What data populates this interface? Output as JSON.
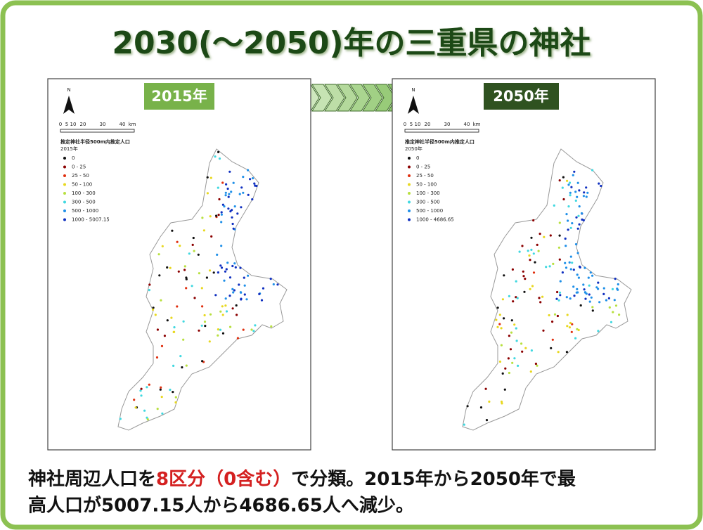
{
  "title": "2030(～2050)年の三重県の神社",
  "banner": {
    "left": "2015年",
    "right": "2050年"
  },
  "maps": [
    {
      "north": "N",
      "scale_labels": [
        "0",
        "5",
        "10",
        "20",
        "30",
        "40",
        "km"
      ],
      "legend_title": "推定神社半径500m内推定人口",
      "legend_year": "2015年",
      "legend_items": [
        "0",
        "0 - 25",
        "25 - 50",
        "50 - 100",
        "100 - 300",
        "300 - 500",
        "500 - 1000",
        "1000 - 5007.15"
      ]
    },
    {
      "north": "N",
      "scale_labels": [
        "0",
        "5",
        "10",
        "20",
        "30",
        "40",
        "km"
      ],
      "legend_title": "推定神社半径500m内推定人口",
      "legend_year": "2050年",
      "legend_items": [
        "0",
        "0 - 25",
        "25 - 50",
        "50 - 100",
        "100 - 300",
        "300 - 500",
        "500 - 1000",
        "1000 - 4686.65"
      ]
    }
  ],
  "body": {
    "line1_a": "神社周辺人口を",
    "highlight": "8区分（0含む）",
    "line1_b": "で分類。2015年から2050年で最",
    "line2": "高人口が5007.15人から4686.65人へ減少。"
  }
}
